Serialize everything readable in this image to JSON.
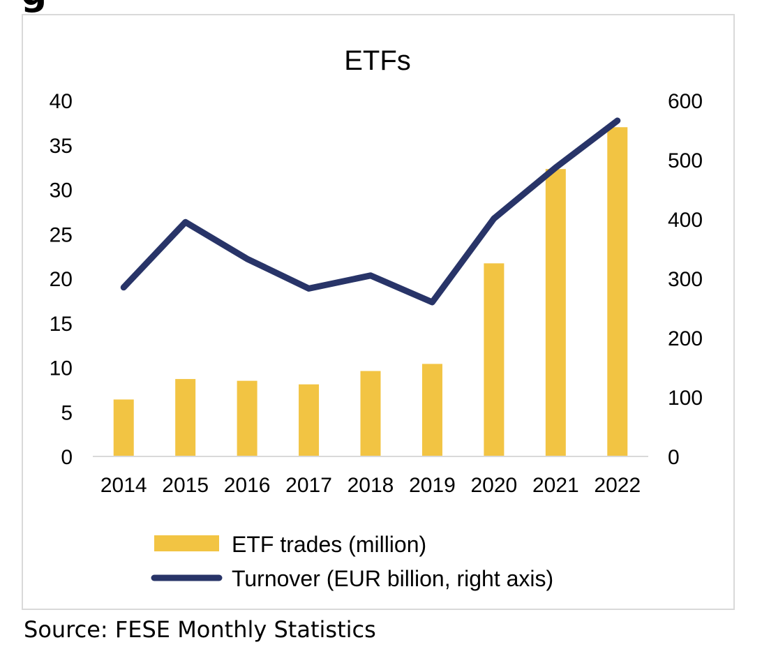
{
  "header": {
    "clipped_heading": "g"
  },
  "chart_data": {
    "type": "bar",
    "title": "ETFs",
    "categories": [
      "2014",
      "2015",
      "2016",
      "2017",
      "2018",
      "2019",
      "2020",
      "2021",
      "2022"
    ],
    "series": [
      {
        "name": "ETF trades (million)",
        "type": "bar",
        "axis": "left",
        "values": [
          6.4,
          8.7,
          8.5,
          8.1,
          9.6,
          10.4,
          21.7,
          32.3,
          37.0
        ]
      },
      {
        "name": "Turnover (EUR billion, right axis)",
        "type": "line",
        "axis": "right",
        "values": [
          285,
          395,
          333,
          283,
          305,
          260,
          401,
          487,
          566
        ]
      }
    ],
    "y_left": {
      "min": 0,
      "max": 40,
      "ticks": [
        "0",
        "5",
        "10",
        "15",
        "20",
        "25",
        "30",
        "35",
        "40"
      ]
    },
    "y_right": {
      "min": 0,
      "max": 600,
      "ticks": [
        "0",
        "100",
        "200",
        "300",
        "400",
        "500",
        "600"
      ]
    },
    "grid": false,
    "legend_position": "bottom",
    "colors": {
      "bar": "#f2c443",
      "line": "#283468"
    }
  },
  "footer": {
    "source": "Source: FESE Monthly Statistics"
  }
}
